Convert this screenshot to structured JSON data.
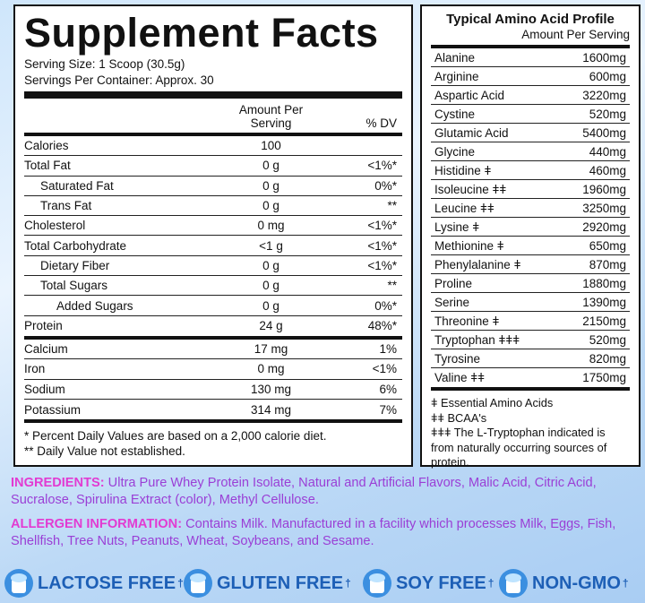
{
  "supplement_facts": {
    "title": "Supplement Facts",
    "serving_size": "Serving Size: 1 Scoop (30.5g)",
    "servings": "Servings Per Container: Approx. 30",
    "header": {
      "amount": "Amount Per Serving",
      "dv": "% DV"
    },
    "rows": [
      [
        "Calories",
        "100"
      ],
      [
        "Total Fat",
        "0 g",
        "<1%*"
      ],
      [
        "Saturated Fat",
        "0 g",
        "0%*"
      ],
      [
        "Trans Fat",
        "0 g",
        "**"
      ],
      [
        "Cholesterol",
        "0 mg",
        "<1%*"
      ],
      [
        "Total Carbohydrate",
        "<1 g",
        "<1%*"
      ],
      [
        "Dietary Fiber",
        "0 g",
        "<1%*"
      ],
      [
        "Total Sugars",
        "0 g",
        "**"
      ],
      [
        "Added Sugars",
        "0 g",
        "0%*"
      ],
      [
        "Protein",
        "24 g",
        "48%*"
      ],
      [
        "Calcium",
        "17 mg",
        "1%"
      ],
      [
        "Iron",
        "0 mg",
        "<1%"
      ],
      [
        "Sodium",
        "130 mg",
        "6%"
      ],
      [
        "Potassium",
        "314 mg",
        "7%"
      ]
    ],
    "footnotes": [
      "* Percent Daily Values are based on a 2,000 calorie diet.",
      "** Daily Value not established."
    ]
  },
  "amino_profile": {
    "title": "Typical Amino Acid Profile",
    "subtitle": "Amount Per Serving",
    "rows": [
      [
        "Alanine",
        "1600mg"
      ],
      [
        "Arginine",
        "600mg"
      ],
      [
        "Aspartic Acid",
        "3220mg"
      ],
      [
        "Cystine",
        "520mg"
      ],
      [
        "Glutamic Acid",
        "5400mg"
      ],
      [
        "Glycine",
        "440mg"
      ],
      [
        "Histidine ǂ",
        "460mg"
      ],
      [
        "Isoleucine ǂǂ",
        "1960mg"
      ],
      [
        "Leucine ǂǂ",
        "3250mg"
      ],
      [
        "Lysine ǂ",
        "2920mg"
      ],
      [
        "Methionine ǂ",
        "650mg"
      ],
      [
        "Phenylalanine ǂ",
        "870mg"
      ],
      [
        "Proline",
        "1880mg"
      ],
      [
        "Serine",
        "1390mg"
      ],
      [
        "Threonine ǂ",
        "2150mg"
      ],
      [
        "Tryptophan ǂǂǂ",
        "520mg"
      ],
      [
        "Tyrosine",
        "820mg"
      ],
      [
        "Valine ǂǂ",
        "1750mg"
      ]
    ],
    "legend": [
      "ǂ Essential Amino Acids",
      "ǂǂ BCAA's",
      "ǂǂǂ The L-Tryptophan indicated is from naturally occurring sources of protein."
    ]
  },
  "ingredients": {
    "label": "INGREDIENTS:",
    "text": "Ultra Pure Whey Protein Isolate, Natural and Artificial Flavors, Malic Acid, Citric Acid, Sucralose, Spirulina Extract (color), Methyl Cellulose."
  },
  "allergen": {
    "label": "ALLERGEN INFORMATION:",
    "text": "Contains Milk. Manufactured in a facility which processes Milk, Eggs, Fish, Shellfish, Tree Nuts, Peanuts, Wheat, Soybeans, and Sesame."
  },
  "badges": [
    {
      "label": "LACTOSE FREE",
      "mark": "†"
    },
    {
      "label": "GLUTEN FREE",
      "mark": "†"
    },
    {
      "label": "SOY FREE",
      "mark": "†"
    },
    {
      "label": "NON-GMO",
      "mark": "†"
    }
  ]
}
